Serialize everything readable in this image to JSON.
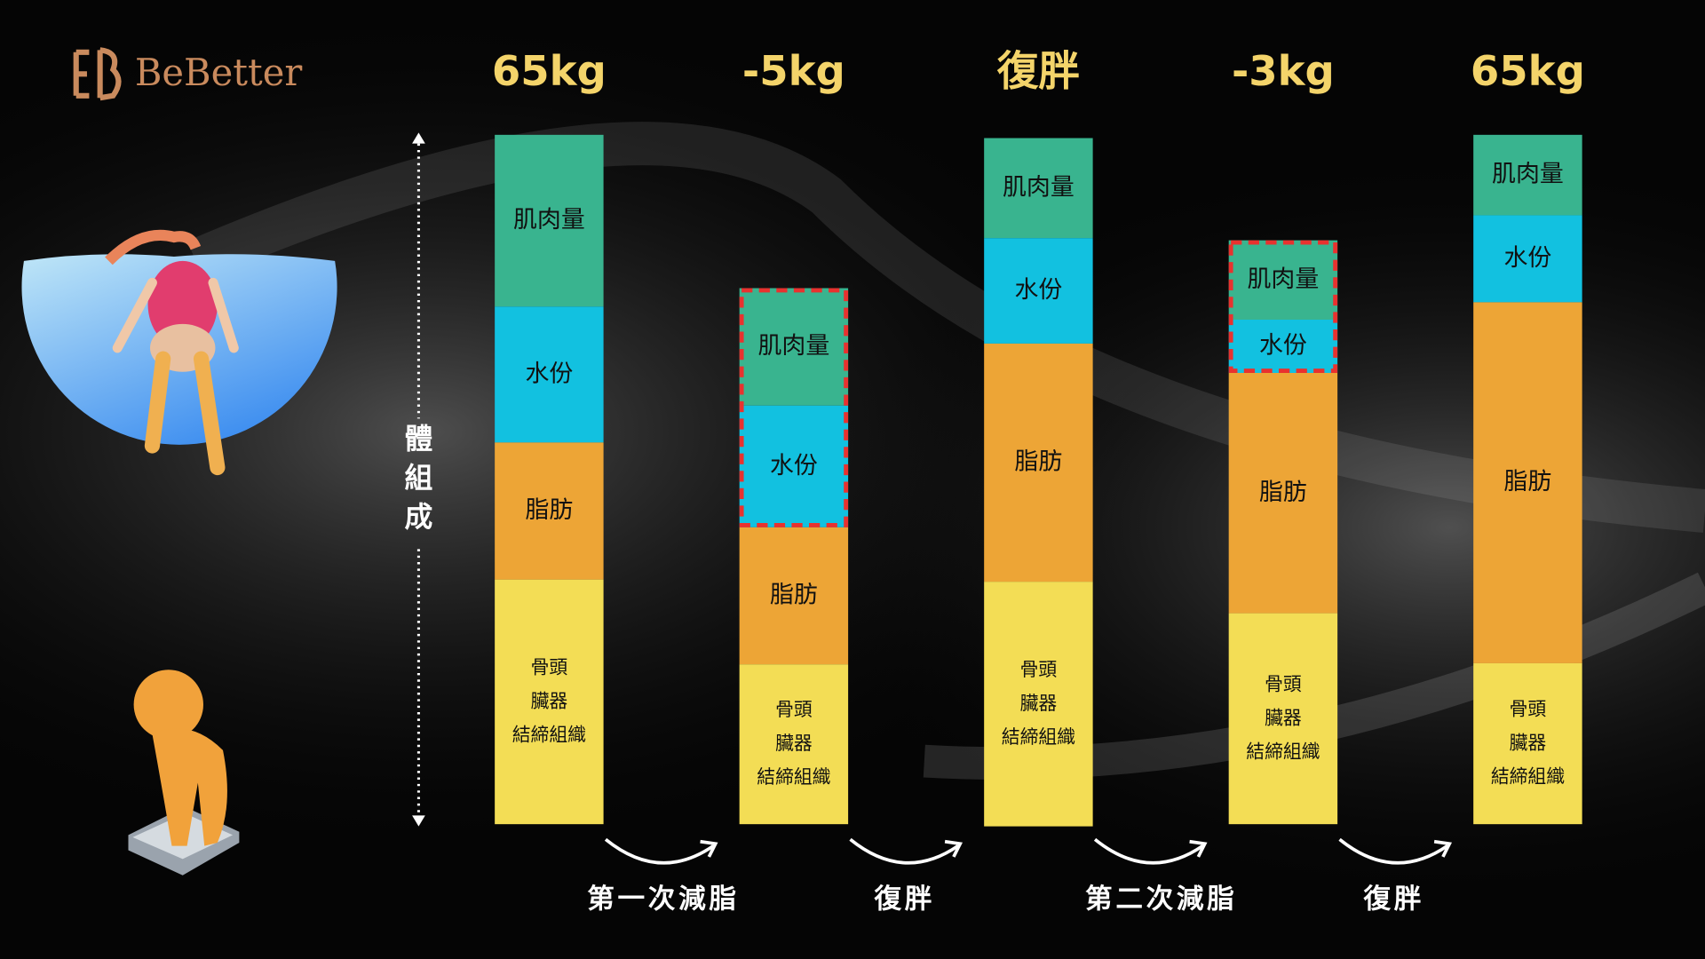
{
  "brand": "BeBetter",
  "axis_label": "體組成",
  "columns": [
    {
      "header": "65kg",
      "muscle": "肌肉量",
      "water": "水份",
      "fat": "脂肪",
      "bone": [
        "骨頭",
        "臟器",
        "結締組織"
      ]
    },
    {
      "header": "-5kg",
      "muscle": "肌肉量",
      "water": "水份",
      "fat": "脂肪",
      "bone": [
        "骨頭",
        "臟器",
        "結締組織"
      ]
    },
    {
      "header": "復胖",
      "muscle": "肌肉量",
      "water": "水份",
      "fat": "脂肪",
      "bone": [
        "骨頭",
        "臟器",
        "結締組織"
      ]
    },
    {
      "header": "-3kg",
      "muscle": "肌肉量",
      "water": "水份",
      "fat": "脂肪",
      "bone": [
        "骨頭",
        "臟器",
        "結締組織"
      ]
    },
    {
      "header": "65kg",
      "muscle": "肌肉量",
      "water": "水份",
      "fat": "脂肪",
      "bone": [
        "骨頭",
        "臟器",
        "結締組織"
      ]
    }
  ],
  "transitions": [
    "第一次減脂",
    "復胖",
    "第二次減脂",
    "復胖"
  ]
}
